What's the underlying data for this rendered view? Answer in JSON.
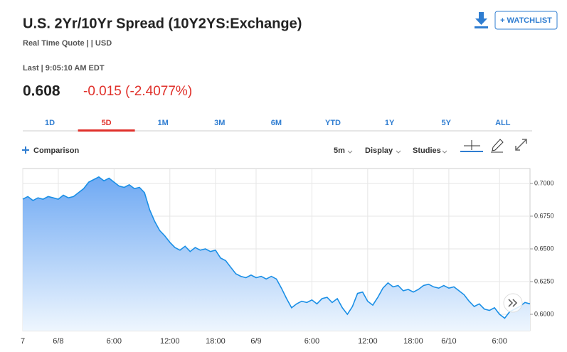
{
  "header": {
    "title": "U.S. 2Yr/10Yr Spread (10Y2YS:Exchange)",
    "quote_info": "Real Time Quote | | USD",
    "last_time": "Last | 9:05:10 AM EDT",
    "price": "0.608",
    "change": "-0.015 (-2.4077%)",
    "watchlist_button": "+ WATCHLIST"
  },
  "tabs": {
    "items": [
      "1D",
      "5D",
      "1M",
      "3M",
      "6M",
      "YTD",
      "1Y",
      "5Y",
      "ALL"
    ],
    "selected": 1
  },
  "toolbar": {
    "comparison": "Comparison",
    "interval": "5m",
    "display": "Display",
    "studies": "Studies"
  },
  "chart_data": {
    "type": "area",
    "color": "#1a8fe6",
    "grid": true,
    "categories": [
      "7",
      null,
      null,
      null,
      null,
      null,
      null,
      "6/8",
      null,
      null,
      null,
      null,
      null,
      null,
      null,
      null,
      null,
      null,
      "6:00",
      null,
      null,
      null,
      null,
      null,
      null,
      null,
      null,
      null,
      null,
      "12:00",
      null,
      null,
      null,
      null,
      null,
      null,
      null,
      null,
      "18:00",
      null,
      null,
      null,
      null,
      null,
      null,
      null,
      "6/9",
      null,
      null,
      null,
      null,
      null,
      null,
      null,
      null,
      null,
      null,
      "6:00",
      null,
      null,
      null,
      null,
      null,
      null,
      null,
      null,
      null,
      null,
      "12:00",
      null,
      null,
      null,
      null,
      null,
      null,
      null,
      null,
      "18:00",
      null,
      null,
      null,
      null,
      null,
      null,
      "6/10",
      null,
      null,
      null,
      null,
      null,
      null,
      null,
      null,
      null,
      "6:00",
      null,
      null,
      null,
      null,
      null,
      null
    ],
    "values": [
      0.688,
      0.69,
      0.687,
      0.689,
      0.688,
      0.69,
      0.689,
      0.688,
      0.691,
      0.689,
      0.69,
      0.693,
      0.696,
      0.701,
      0.703,
      0.705,
      0.702,
      0.704,
      0.701,
      0.698,
      0.697,
      0.699,
      0.696,
      0.697,
      0.693,
      0.68,
      0.671,
      0.664,
      0.66,
      0.655,
      0.651,
      0.649,
      0.652,
      0.648,
      0.651,
      0.649,
      0.65,
      0.648,
      0.649,
      0.643,
      0.641,
      0.636,
      0.631,
      0.629,
      0.628,
      0.63,
      0.628,
      0.629,
      0.627,
      0.629,
      0.627,
      0.62,
      0.612,
      0.605,
      0.608,
      0.61,
      0.609,
      0.611,
      0.608,
      0.612,
      0.613,
      0.609,
      0.612,
      0.605,
      0.6,
      0.606,
      0.616,
      0.617,
      0.61,
      0.607,
      0.613,
      0.62,
      0.624,
      0.621,
      0.622,
      0.618,
      0.619,
      0.617,
      0.619,
      0.622,
      0.623,
      0.621,
      0.62,
      0.622,
      0.62,
      0.621,
      0.618,
      0.615,
      0.61,
      0.606,
      0.608,
      0.604,
      0.603,
      0.605,
      0.6,
      0.597,
      0.602,
      0.604,
      0.606,
      0.609,
      0.608
    ],
    "ylim": [
      0.5875,
      0.7114
    ],
    "yticks": [
      {
        "value": 0.6,
        "label": "0.6000"
      },
      {
        "value": 0.625,
        "label": "0.6250"
      },
      {
        "value": 0.65,
        "label": "0.6500"
      },
      {
        "value": 0.675,
        "label": "0.6750"
      },
      {
        "value": 0.7,
        "label": "0.7000"
      }
    ]
  }
}
